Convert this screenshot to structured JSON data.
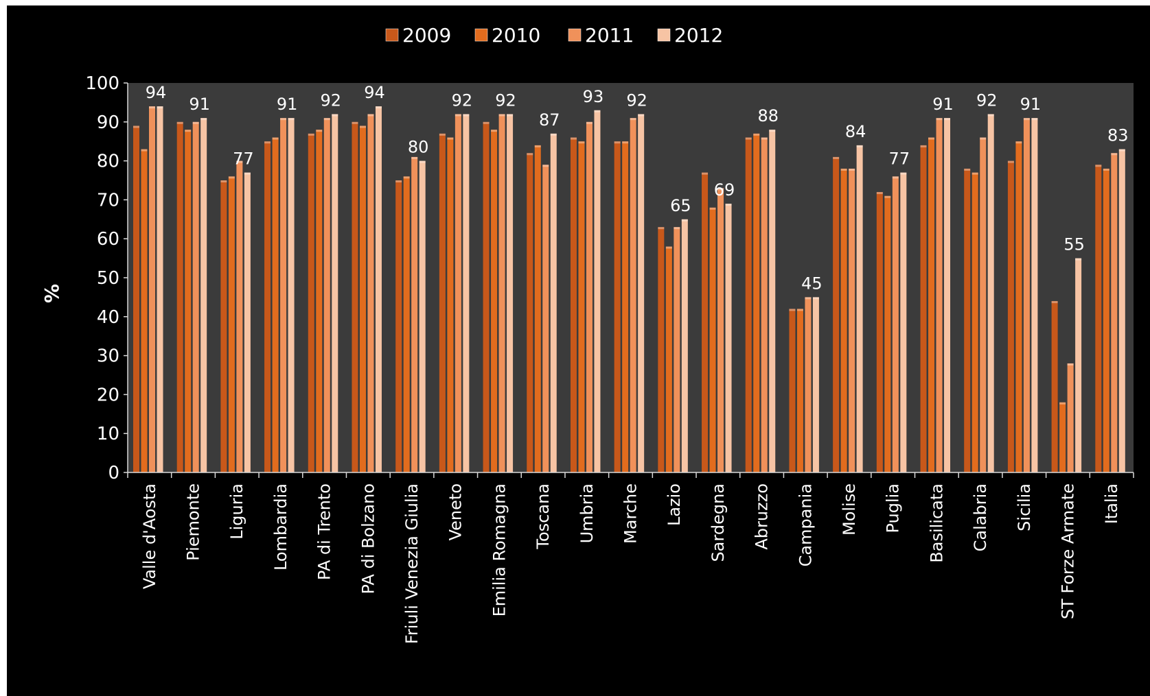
{
  "chart_data": {
    "type": "bar",
    "title": "",
    "xlabel": "",
    "ylabel": "%",
    "ylim": [
      0,
      100
    ],
    "yticks": [
      0,
      10,
      20,
      30,
      40,
      50,
      60,
      70,
      80,
      90,
      100
    ],
    "grid": false,
    "legend_position": "top",
    "categories": [
      "Valle d'Aosta",
      "Piemonte",
      "Liguria",
      "Lombardia",
      "PA di Trento",
      "PA di Bolzano",
      "Friuli Venezia Giulia",
      "Veneto",
      "Emilia Romagna",
      "Toscana",
      "Umbria",
      "Marche",
      "Lazio",
      "Sardegna",
      "Abruzzo",
      "Campania",
      "Molise",
      "Puglia",
      "Basilicata",
      "Calabria",
      "Sicilia",
      "ST Forze Armate",
      "Italia"
    ],
    "series": [
      {
        "name": "2009",
        "color": "#c8581a",
        "values": [
          89,
          90,
          75,
          85,
          87,
          90,
          75,
          87,
          90,
          82,
          86,
          85,
          63,
          77,
          86,
          42,
          81,
          72,
          84,
          78,
          80,
          44,
          79
        ]
      },
      {
        "name": "2010",
        "color": "#e26c1e",
        "values": [
          83,
          88,
          76,
          86,
          88,
          89,
          76,
          86,
          88,
          84,
          85,
          85,
          58,
          68,
          87,
          42,
          78,
          71,
          86,
          77,
          85,
          18,
          78
        ]
      },
      {
        "name": "2011",
        "color": "#f0915a",
        "values": [
          94,
          90,
          80,
          91,
          91,
          92,
          81,
          92,
          92,
          79,
          90,
          91,
          63,
          73,
          86,
          45,
          78,
          76,
          91,
          86,
          91,
          28,
          82
        ]
      },
      {
        "name": "2012",
        "color": "#f7c4a4",
        "values": [
          94,
          91,
          77,
          91,
          92,
          94,
          80,
          92,
          92,
          87,
          93,
          92,
          65,
          69,
          88,
          45,
          84,
          77,
          91,
          92,
          91,
          55,
          83
        ]
      }
    ],
    "data_labels": [
      "94",
      "91",
      "77",
      "91",
      "92",
      "94",
      "80",
      "92",
      "92",
      "87",
      "93",
      "92",
      "65",
      "69",
      "88",
      "45",
      "84",
      "77",
      "91",
      "92",
      "91",
      "55",
      "83"
    ],
    "colors": {
      "background": "#000000",
      "plot_area": "#3b3b3b",
      "text": "#ffffff",
      "axis": "#d9d9d9"
    }
  }
}
